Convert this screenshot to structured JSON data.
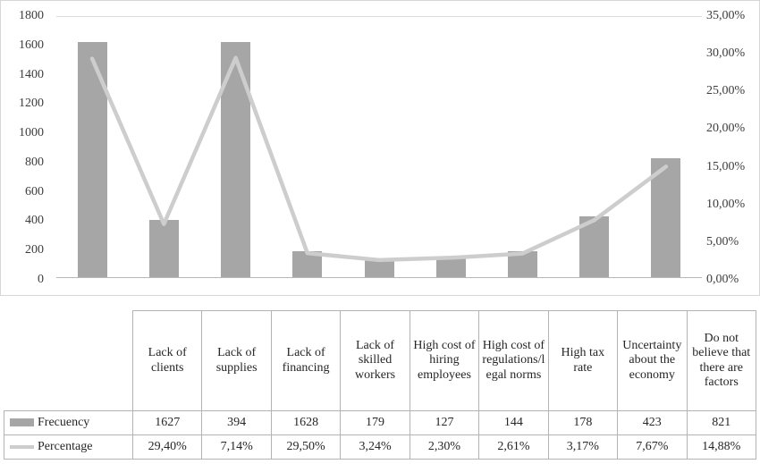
{
  "chart_data": {
    "type": "bar+line combo",
    "title": "",
    "xlabel": "",
    "ylabel": "",
    "legend_position": "table-below",
    "grid": "top gridline and baseline only",
    "categories": [
      "Lack of clients",
      "Lack of supplies",
      "Lack of financing",
      "Lack of skilled workers",
      "High cost of hiring employees",
      "High cost of regulations/legal norms",
      "High tax rate",
      "Uncertainty about the economy",
      "Do not believe that there are factors"
    ],
    "series": [
      {
        "name": "Frecuency",
        "chart": "bar",
        "axis": "left",
        "values": [
          1627,
          394,
          1628,
          179,
          127,
          144,
          178,
          423,
          821
        ],
        "color": "#a6a6a6"
      },
      {
        "name": "Percentage",
        "chart": "line",
        "axis": "right",
        "values": [
          29.4,
          7.14,
          29.5,
          3.24,
          2.3,
          2.61,
          3.17,
          7.67,
          14.88
        ],
        "color": "#cdcdcd"
      }
    ],
    "left_axis": {
      "min": 0,
      "max": 1800,
      "step": 200,
      "ticks": [
        "1800",
        "1600",
        "1400",
        "1200",
        "1000",
        "800",
        "600",
        "400",
        "200",
        "0"
      ]
    },
    "right_axis": {
      "min": 0,
      "max": 35,
      "step": 5,
      "ticks": [
        "35,00%",
        "30,00%",
        "25,00%",
        "20,00%",
        "15,00%",
        "10,00%",
        "5,00%",
        "0,00%"
      ]
    }
  },
  "table": {
    "corner_label": "",
    "row_labels": [
      "Frecuency",
      "Percentage"
    ],
    "rows": [
      [
        "1627",
        "394",
        "1628",
        "179",
        "127",
        "144",
        "178",
        "423",
        "821"
      ],
      [
        "29,40%",
        "7,14%",
        "29,50%",
        "3,24%",
        "2,30%",
        "2,61%",
        "3,17%",
        "7,67%",
        "14,88%"
      ]
    ]
  }
}
